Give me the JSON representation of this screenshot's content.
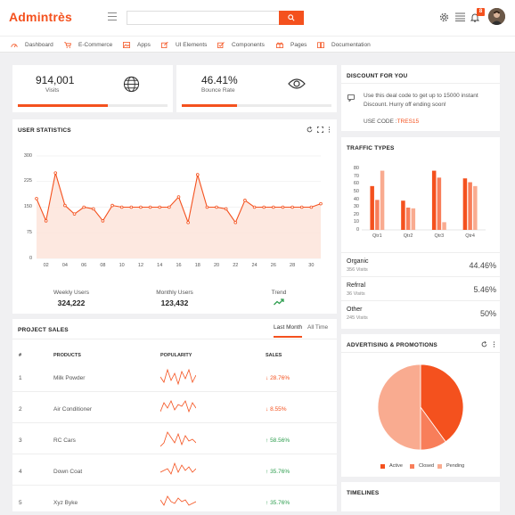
{
  "brand": {
    "name": "Admintrès",
    "accent": "#f4511e"
  },
  "header": {
    "search_placeholder": "",
    "notification_count": "8"
  },
  "nav": [
    {
      "label": "Dashboard",
      "icon": "dashboard-icon"
    },
    {
      "label": "E-Commerce",
      "icon": "cart-icon"
    },
    {
      "label": "Apps",
      "icon": "image-icon"
    },
    {
      "label": "UI Elements",
      "icon": "edit-icon"
    },
    {
      "label": "Components",
      "icon": "checkbox-icon"
    },
    {
      "label": "Pages",
      "icon": "gift-icon"
    },
    {
      "label": "Documentation",
      "icon": "book-icon"
    }
  ],
  "stats": [
    {
      "value": "914,001",
      "label": "Visits",
      "icon": "globe-icon",
      "progress": 0.6
    },
    {
      "value": "46.41%",
      "label": "Bounce Rate",
      "icon": "eye-icon",
      "progress": 0.37
    }
  ],
  "user_statistics": {
    "title": "USER STATISTICS",
    "chart_data": {
      "type": "area",
      "x": [
        1,
        2,
        3,
        4,
        5,
        6,
        7,
        8,
        9,
        10,
        11,
        12,
        13,
        14,
        15,
        16,
        17,
        18,
        19,
        20,
        21,
        22,
        23,
        24,
        25,
        26,
        27,
        28,
        29,
        30,
        31
      ],
      "x_tick_labels": [
        "02",
        "04",
        "06",
        "08",
        "10",
        "12",
        "14",
        "16",
        "18",
        "20",
        "22",
        "24",
        "26",
        "28",
        "30"
      ],
      "y_ticks": [
        0,
        75,
        150,
        225,
        300
      ],
      "ylim": [
        0,
        300
      ],
      "values": [
        175,
        110,
        250,
        155,
        130,
        150,
        145,
        110,
        155,
        150,
        150,
        150,
        150,
        150,
        150,
        180,
        105,
        245,
        150,
        150,
        145,
        105,
        170,
        150,
        150,
        150,
        150,
        150,
        150,
        150,
        160
      ],
      "grid": "horizontal"
    },
    "summary": [
      {
        "label": "Weekly Users",
        "value": "324,222"
      },
      {
        "label": "Monthly Users",
        "value": "123,432"
      },
      {
        "label": "Trend",
        "value": ""
      }
    ]
  },
  "project_sales": {
    "title": "PROJECT SALES",
    "tabs": [
      "Last Month",
      "All Time"
    ],
    "columns": [
      "#",
      "PRODUCTS",
      "POPULARITY",
      "SALES"
    ],
    "rows": [
      {
        "num": "1",
        "product": "Milk Powder",
        "sales": "28.76%",
        "trend": "down"
      },
      {
        "num": "2",
        "product": "Air Conditioner",
        "sales": "8.55%",
        "trend": "down"
      },
      {
        "num": "3",
        "product": "RC Cars",
        "sales": "58.56%",
        "trend": "up"
      },
      {
        "num": "4",
        "product": "Down Coat",
        "sales": "35.76%",
        "trend": "up"
      },
      {
        "num": "5",
        "product": "Xyz Byke",
        "sales": "35.76%",
        "trend": "up"
      }
    ]
  },
  "discount": {
    "title": "DISCOUNT FOR YOU",
    "text": "Use this deal code to get up to 15000 instant Discount. Hurry off ending soon!",
    "code_label": "USE CODE :",
    "code": "TRES15"
  },
  "traffic_types": {
    "title": "TRAFFIC TYPES",
    "chart_data": {
      "type": "bar",
      "categories": [
        "Qtr1",
        "Qtr2",
        "Qtr3",
        "Qtr4"
      ],
      "y_ticks": [
        0,
        10,
        20,
        30,
        40,
        50,
        60,
        70,
        80
      ],
      "ylim": [
        0,
        80
      ],
      "series": [
        {
          "values": [
            57,
            38,
            77,
            67
          ],
          "color": "#f4511e"
        },
        {
          "values": [
            39,
            29,
            68,
            62
          ],
          "color": "#f87e5a"
        },
        {
          "values": [
            77,
            28,
            10,
            57
          ],
          "color": "#f9ab90"
        }
      ]
    },
    "breakdown": [
      {
        "label": "Organic",
        "sub": "356 Visits",
        "pct": "44.46%"
      },
      {
        "label": "Refrral",
        "sub": "36 Visits",
        "pct": "5.46%"
      },
      {
        "label": "Other",
        "sub": "245 Visits",
        "pct": "50%"
      }
    ]
  },
  "advertising": {
    "title": "ADVERTISING & PROMOTIONS",
    "chart_data": {
      "type": "pie",
      "labels": [
        "Active",
        "Closed",
        "Pending"
      ],
      "values": [
        40,
        10,
        50
      ],
      "colors": [
        "#f4511e",
        "#f87e5a",
        "#f9ab90"
      ]
    }
  },
  "timelines": {
    "title": "TIMELINES"
  }
}
